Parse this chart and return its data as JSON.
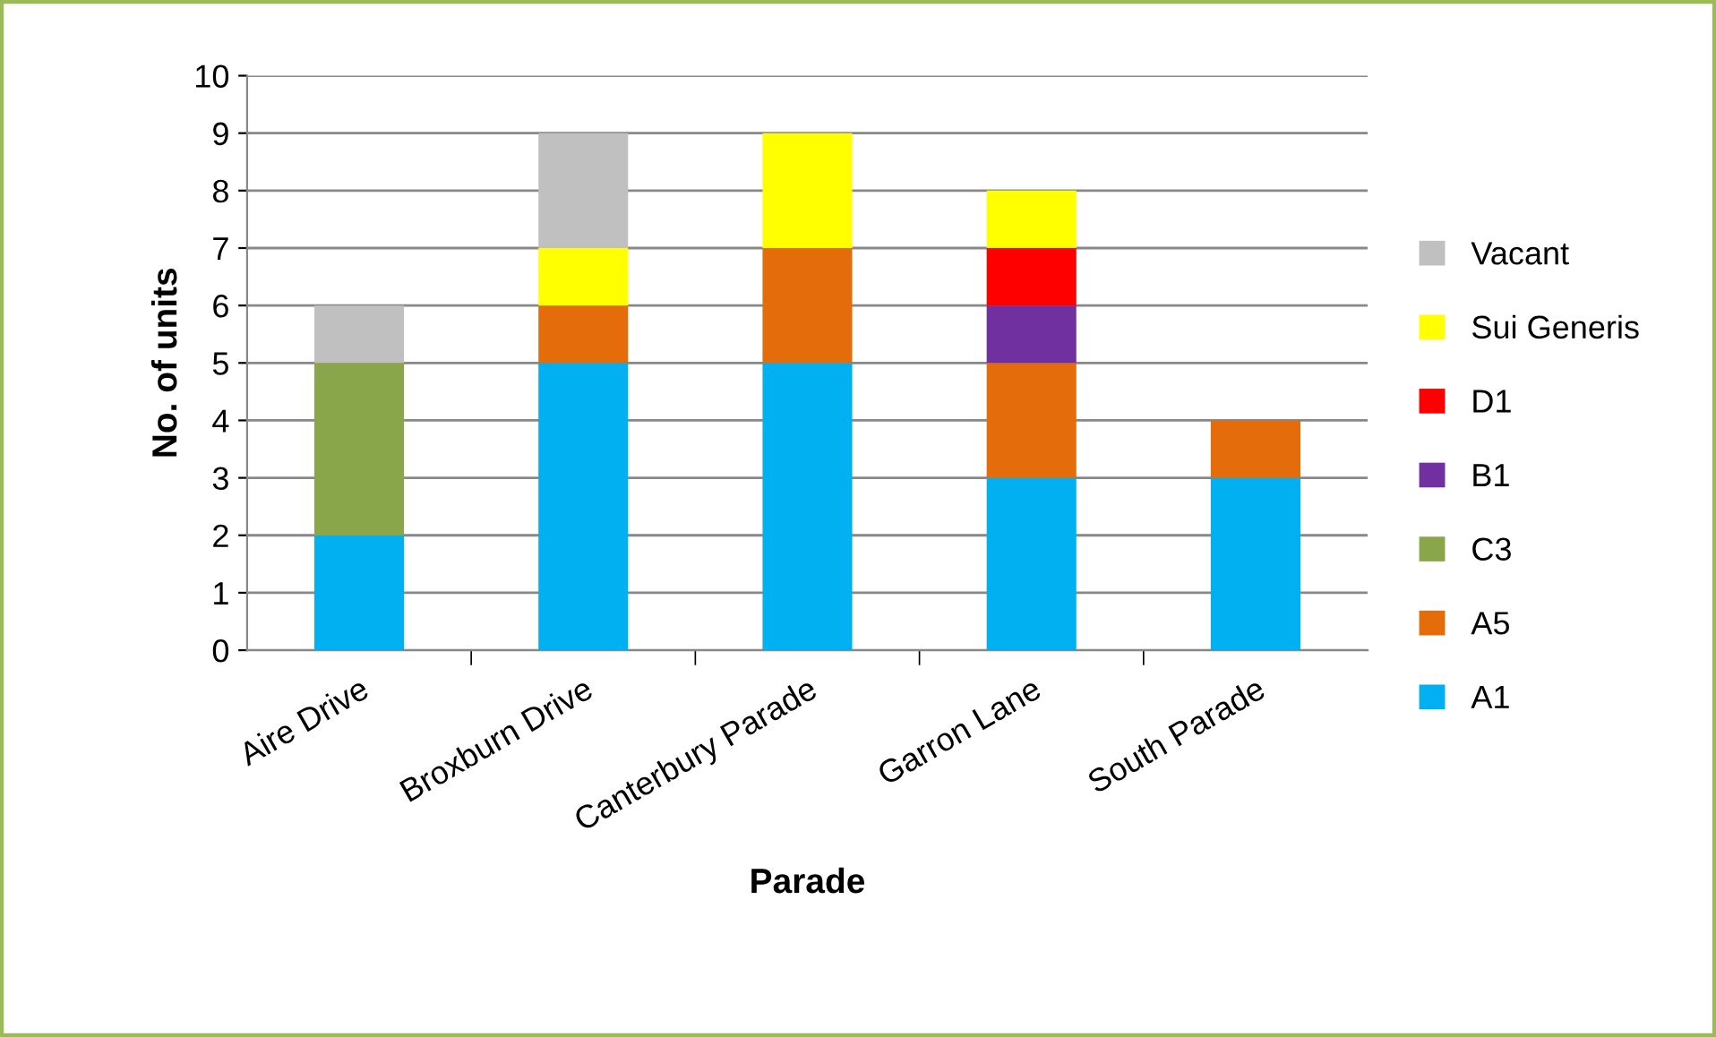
{
  "chart_data": {
    "type": "bar",
    "stacked": true,
    "xlabel": "Parade",
    "ylabel": "No. of units",
    "categories": [
      "Aire Drive",
      "Broxburn Drive",
      "Canterbury Parade",
      "Garron Lane",
      "South Parade"
    ],
    "series": [
      {
        "name": "A1",
        "color": "#00b0f0",
        "values": [
          2,
          5,
          5,
          3,
          3
        ]
      },
      {
        "name": "A5",
        "color": "#e46c0a",
        "values": [
          null,
          1,
          2,
          2,
          1
        ]
      },
      {
        "name": "C3",
        "color": "#8aa64a",
        "values": [
          3,
          null,
          null,
          null,
          null
        ]
      },
      {
        "name": "B1",
        "color": "#7030a0",
        "values": [
          null,
          null,
          null,
          1,
          null
        ]
      },
      {
        "name": "D1",
        "color": "#ff0000",
        "values": [
          null,
          null,
          null,
          1,
          null
        ]
      },
      {
        "name": "Sui Generis",
        "color": "#ffff00",
        "values": [
          null,
          1,
          2,
          1,
          null
        ]
      },
      {
        "name": "Vacant",
        "color": "#c0c0c0",
        "values": [
          1,
          2,
          null,
          null,
          null
        ]
      }
    ],
    "ylim": [
      0,
      10
    ],
    "yticks": [
      0,
      1,
      2,
      3,
      4,
      5,
      6,
      7,
      8,
      9,
      10
    ],
    "grid": "y",
    "legend": "right"
  }
}
